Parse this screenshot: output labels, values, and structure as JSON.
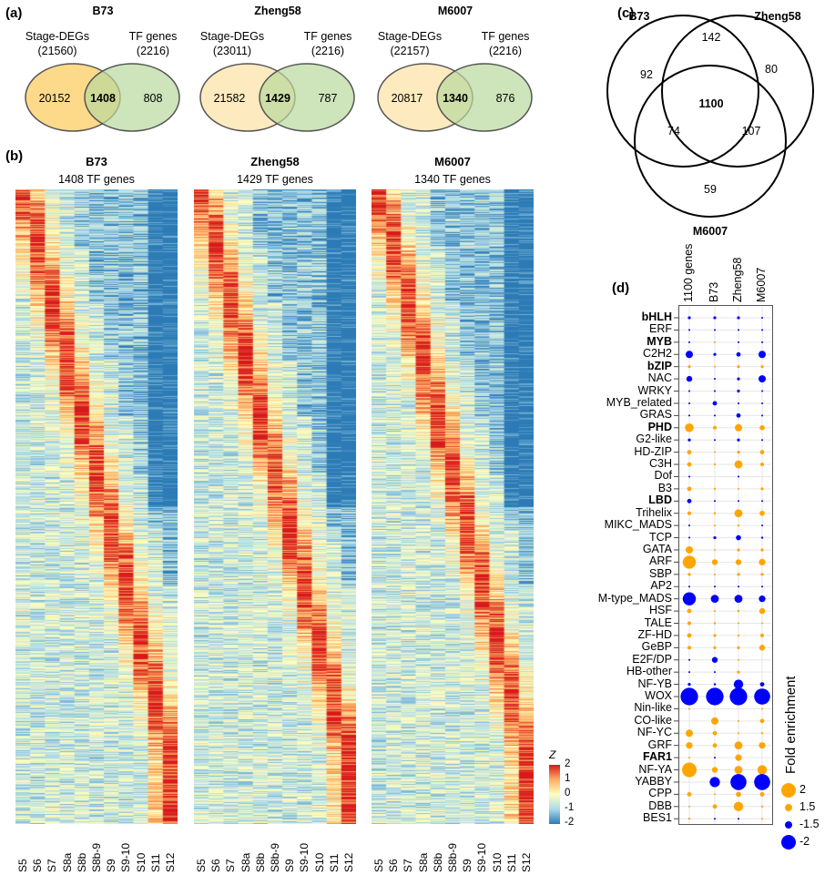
{
  "panels": {
    "a": "(a)",
    "b": "(b)",
    "c": "(c)",
    "d": "(d)"
  },
  "venn_a": [
    {
      "title": "B73",
      "left_label": "Stage-DEGs",
      "left_total": "(21560)",
      "right_label": "TF genes",
      "right_total": "(2216)",
      "left_only": "20152",
      "overlap": "1408",
      "right_only": "808"
    },
    {
      "title": "Zheng58",
      "left_label": "Stage-DEGs",
      "left_total": "(23011)",
      "right_label": "TF genes",
      "right_total": "(2216)",
      "left_only": "21582",
      "overlap": "1429",
      "right_only": "787"
    },
    {
      "title": "M6007",
      "left_label": "Stage-DEGs",
      "left_total": "(22157)",
      "right_label": "TF genes",
      "right_total": "(2216)",
      "left_only": "20817",
      "overlap": "1340",
      "right_only": "876"
    }
  ],
  "venn_c": {
    "labels": [
      "B73",
      "Zheng58",
      "M6007"
    ],
    "b73_only": "92",
    "zheng_only": "80",
    "m6007_only": "59",
    "b73_zheng": "142",
    "b73_m6007": "74",
    "zheng_m6007": "107",
    "all": "1100"
  },
  "colors": {
    "red": "#d7191c",
    "blue": "#2c7bb6",
    "orange": "#ffa500",
    "dotblue": "#0000ff",
    "venn_left": "#fdd98a",
    "venn_right": "#c9e2b3"
  },
  "chart_data": [
    {
      "type": "heatmap",
      "title": "B73",
      "subtitle": "1408 TF genes",
      "rows": 1408,
      "columns": [
        "S5",
        "S6",
        "S7",
        "S8a",
        "S8b",
        "S8b-9",
        "S9",
        "S9-10",
        "S10",
        "S11",
        "S12"
      ]
    },
    {
      "type": "heatmap",
      "title": "Zheng58",
      "subtitle": "1429 TF genes",
      "rows": 1429,
      "columns": [
        "S5",
        "S6",
        "S7",
        "S8a",
        "S8b",
        "S8b-9",
        "S9",
        "S9-10",
        "S10",
        "S11",
        "S12"
      ]
    },
    {
      "type": "heatmap",
      "title": "M6007",
      "subtitle": "1340 TF genes",
      "rows": 1340,
      "columns": [
        "S5",
        "S6",
        "S7",
        "S8a",
        "S8b",
        "S8b-9",
        "S9",
        "S9-10",
        "S10",
        "S11",
        "S12"
      ]
    },
    {
      "type": "heatmap_colorbar",
      "label": "Z",
      "ticks": [
        "2",
        "1",
        "0",
        "-1",
        "-2"
      ],
      "range": [
        -2,
        2
      ]
    },
    {
      "type": "scatter",
      "subtype": "dot-plot",
      "columns": [
        "1100 genes",
        "B73",
        "Zheng58",
        "M6007"
      ],
      "legend_title": "Fold enrichment",
      "legend": [
        "2",
        "1.5",
        "-1.5",
        "-2"
      ],
      "legend_placement": "right",
      "rows": [
        {
          "name": "bHLH",
          "bold": true,
          "values": [
            -1.2,
            -1.2,
            -1.2,
            -1.1
          ]
        },
        {
          "name": "ERF",
          "bold": false,
          "values": [
            -1.05,
            -1.05,
            -1.1,
            -1.05
          ]
        },
        {
          "name": "MYB",
          "bold": true,
          "values": [
            -1.05,
            1.05,
            -1.05,
            -1.1
          ]
        },
        {
          "name": "C2H2",
          "bold": false,
          "values": [
            -1.5,
            -1.2,
            -1.3,
            -1.5
          ]
        },
        {
          "name": "bZIP",
          "bold": true,
          "values": [
            1.2,
            1.1,
            1.2,
            1.2
          ]
        },
        {
          "name": "NAC",
          "bold": false,
          "values": [
            -1.4,
            -1.1,
            -1.2,
            -1.5
          ]
        },
        {
          "name": "WRKY",
          "bold": false,
          "values": [
            -1.1,
            -1.1,
            -1.2,
            -1.1
          ]
        },
        {
          "name": "MYB_related",
          "bold": false,
          "values": [
            -1.1,
            -1.3,
            -1.1,
            -1.1
          ]
        },
        {
          "name": "GRAS",
          "bold": false,
          "values": [
            -1.1,
            -1.1,
            -1.3,
            -1.1
          ]
        },
        {
          "name": "PHD",
          "bold": true,
          "values": [
            1.6,
            1.25,
            1.5,
            1.35
          ]
        },
        {
          "name": "G2-like",
          "bold": false,
          "values": [
            -1.2,
            -1.05,
            -1.2,
            -1.1
          ]
        },
        {
          "name": "HD-ZIP",
          "bold": false,
          "values": [
            1.3,
            1.1,
            1.2,
            1.3
          ]
        },
        {
          "name": "C3H",
          "bold": false,
          "values": [
            1.3,
            1.15,
            1.55,
            1.25
          ]
        },
        {
          "name": "Dof",
          "bold": false,
          "values": [
            -1.1,
            0,
            -1.1,
            0
          ]
        },
        {
          "name": "B3",
          "bold": false,
          "values": [
            1.3,
            1.15,
            1.1,
            1.2
          ]
        },
        {
          "name": "LBD",
          "bold": true,
          "values": [
            -1.3,
            -1.1,
            -1.1,
            -1.1
          ]
        },
        {
          "name": "Trihelix",
          "bold": false,
          "values": [
            1.25,
            1.15,
            1.55,
            1.35
          ]
        },
        {
          "name": "MIKC_MADS",
          "bold": false,
          "values": [
            -1.1,
            1.1,
            1.15,
            -1.1
          ]
        },
        {
          "name": "TCP",
          "bold": false,
          "values": [
            -1.1,
            -1.2,
            -1.35,
            -1.15
          ]
        },
        {
          "name": "GATA",
          "bold": false,
          "values": [
            1.5,
            1.1,
            1.2,
            1.2
          ]
        },
        {
          "name": "ARF",
          "bold": false,
          "values": [
            1.9,
            1.4,
            1.4,
            1.45
          ]
        },
        {
          "name": "SBP",
          "bold": false,
          "values": [
            1.2,
            1.05,
            1.2,
            1.2
          ]
        },
        {
          "name": "AP2",
          "bold": false,
          "values": [
            -1.05,
            -1.1,
            -1.1,
            -1.1
          ]
        },
        {
          "name": "M-type_MADS",
          "bold": false,
          "values": [
            -1.9,
            -1.55,
            -1.55,
            -1.45
          ]
        },
        {
          "name": "HSF",
          "bold": false,
          "values": [
            1.3,
            1.1,
            1.15,
            1.4
          ]
        },
        {
          "name": "TALE",
          "bold": false,
          "values": [
            1.25,
            1.15,
            1.1,
            1.05
          ]
        },
        {
          "name": "ZF-HD",
          "bold": false,
          "values": [
            1.3,
            1.2,
            1.15,
            1.25
          ]
        },
        {
          "name": "GeBP",
          "bold": false,
          "values": [
            1.25,
            1.2,
            1.2,
            1.4
          ]
        },
        {
          "name": "E2F/DP",
          "bold": false,
          "values": [
            -1.05,
            -1.4,
            1.05,
            0
          ]
        },
        {
          "name": "HB-other",
          "bold": false,
          "values": [
            -1.05,
            -1.05,
            1.2,
            0
          ]
        },
        {
          "name": "NF-YB",
          "bold": false,
          "values": [
            -1.2,
            -1.15,
            -1.65,
            -1.3
          ]
        },
        {
          "name": "WOX",
          "bold": false,
          "values": [
            -2.2,
            -2.2,
            -2.2,
            -2.1
          ]
        },
        {
          "name": "Nin-like",
          "bold": false,
          "values": [
            1.05,
            0,
            0,
            1.05
          ]
        },
        {
          "name": "CO-like",
          "bold": false,
          "values": [
            0,
            1.5,
            1.05,
            1.3
          ]
        },
        {
          "name": "NF-YC",
          "bold": false,
          "values": [
            1.5,
            1.3,
            1.1,
            1.15
          ]
        },
        {
          "name": "GRF",
          "bold": false,
          "values": [
            1.45,
            1.3,
            1.55,
            1.45
          ]
        },
        {
          "name": "FAR1",
          "bold": true,
          "values": [
            1.05,
            -1.05,
            1.45,
            0
          ]
        },
        {
          "name": "NF-YA",
          "bold": false,
          "values": [
            2.0,
            1.4,
            1.55,
            1.65
          ]
        },
        {
          "name": "YABBY",
          "bold": false,
          "values": [
            0,
            -1.7,
            -2.1,
            -2.1
          ]
        },
        {
          "name": "CPP",
          "bold": false,
          "values": [
            1.3,
            1.1,
            1.35,
            1.3
          ]
        },
        {
          "name": "DBB",
          "bold": false,
          "values": [
            1.05,
            1.3,
            1.65,
            1.15
          ]
        },
        {
          "name": "BES1",
          "bold": false,
          "values": [
            1.15,
            -1.05,
            -1.05,
            1.1
          ]
        }
      ]
    }
  ]
}
